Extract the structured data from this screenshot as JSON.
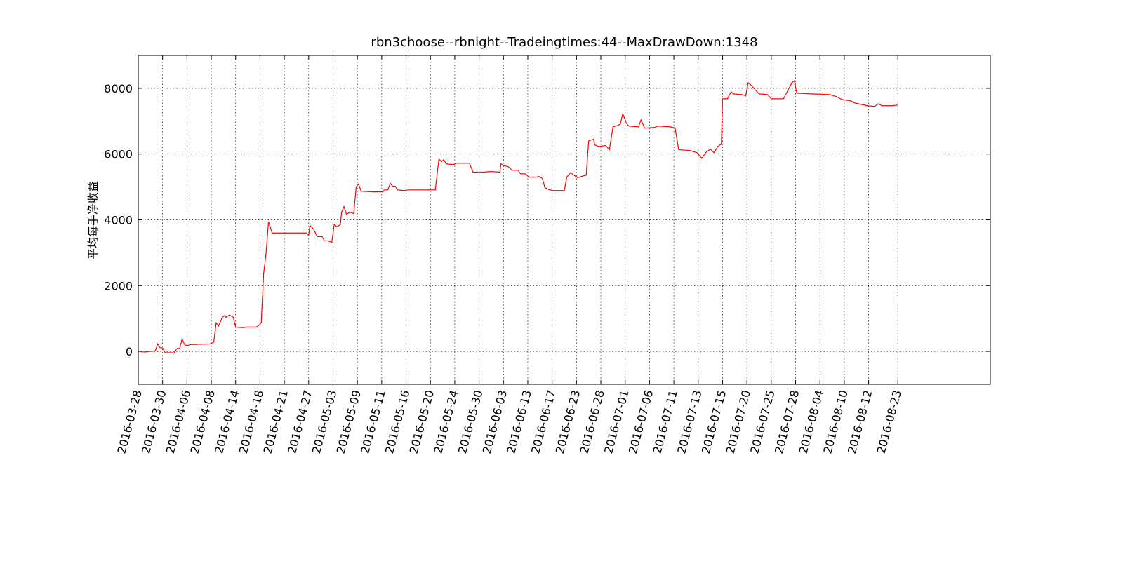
{
  "chart_data": {
    "type": "line",
    "title": "rbn3choose--rbnight--Tradeingtimes:44--MaxDrawDown:1348",
    "ylabel": "平均每手净收益",
    "color": "#ff0000",
    "grid": true,
    "xlim": [
      0,
      700
    ],
    "ylim": [
      -1000,
      9000
    ],
    "yticks": [
      0,
      2000,
      4000,
      6000,
      8000
    ],
    "xticks": [
      {
        "value": 0,
        "label": "2016-03-28"
      },
      {
        "value": 20,
        "label": "2016-03-30"
      },
      {
        "value": 40,
        "label": "2016-04-06"
      },
      {
        "value": 60,
        "label": "2016-04-08"
      },
      {
        "value": 80,
        "label": "2016-04-14"
      },
      {
        "value": 100,
        "label": "2016-04-18"
      },
      {
        "value": 120,
        "label": "2016-04-21"
      },
      {
        "value": 140,
        "label": "2016-04-27"
      },
      {
        "value": 160,
        "label": "2016-05-03"
      },
      {
        "value": 180,
        "label": "2016-05-09"
      },
      {
        "value": 200,
        "label": "2016-05-11"
      },
      {
        "value": 220,
        "label": "2016-05-16"
      },
      {
        "value": 240,
        "label": "2016-05-20"
      },
      {
        "value": 260,
        "label": "2016-05-24"
      },
      {
        "value": 280,
        "label": "2016-05-30"
      },
      {
        "value": 300,
        "label": "2016-06-03"
      },
      {
        "value": 320,
        "label": "2016-06-13"
      },
      {
        "value": 340,
        "label": "2016-06-17"
      },
      {
        "value": 360,
        "label": "2016-06-23"
      },
      {
        "value": 380,
        "label": "2016-06-28"
      },
      {
        "value": 400,
        "label": "2016-07-01"
      },
      {
        "value": 420,
        "label": "2016-07-06"
      },
      {
        "value": 440,
        "label": "2016-07-11"
      },
      {
        "value": 460,
        "label": "2016-07-13"
      },
      {
        "value": 480,
        "label": "2016-07-15"
      },
      {
        "value": 500,
        "label": "2016-07-20"
      },
      {
        "value": 520,
        "label": "2016-07-25"
      },
      {
        "value": 540,
        "label": "2016-07-28"
      },
      {
        "value": 560,
        "label": "2016-08-04"
      },
      {
        "value": 580,
        "label": "2016-08-10"
      },
      {
        "value": 600,
        "label": "2016-08-12"
      },
      {
        "value": 624,
        "label": "2016-08-23"
      }
    ],
    "x": [
      0,
      5,
      10,
      14,
      16,
      18,
      20,
      22,
      28,
      29,
      32,
      34,
      36,
      38,
      40,
      43,
      45,
      59,
      62,
      64,
      66,
      69,
      71,
      72,
      75,
      78,
      80,
      86,
      89,
      97,
      99,
      101,
      103,
      105,
      107,
      110,
      117,
      138,
      140,
      141,
      144,
      147,
      151,
      153,
      156,
      159,
      161,
      163,
      166,
      167,
      169,
      171,
      174,
      177,
      179,
      181,
      183,
      193,
      201,
      202,
      205,
      207,
      209,
      211,
      213,
      218,
      222,
      244,
      245,
      247,
      249,
      251,
      253,
      259,
      261,
      272,
      275,
      284,
      289,
      297,
      298,
      301,
      304,
      307,
      312,
      314,
      318,
      321,
      327,
      329,
      332,
      334,
      338,
      341,
      350,
      352,
      355,
      358,
      361,
      364,
      368,
      370,
      374,
      375,
      378,
      384,
      387,
      390,
      394,
      396,
      398,
      401,
      403,
      411,
      413,
      416,
      424,
      427,
      437,
      441,
      444,
      453,
      459,
      463,
      466,
      470,
      473,
      476,
      479,
      480,
      484,
      487,
      489,
      496,
      499,
      501,
      503,
      510,
      517,
      520,
      528,
      530,
      534,
      537,
      539,
      541,
      553,
      568,
      574,
      578,
      585,
      589,
      599,
      605,
      608,
      611,
      619,
      624
    ],
    "values": [
      0,
      -20,
      0,
      20,
      230,
      110,
      110,
      -40,
      -40,
      -60,
      90,
      90,
      380,
      210,
      170,
      210,
      210,
      230,
      280,
      870,
      770,
      1040,
      1090,
      1040,
      1110,
      1040,
      740,
      720,
      740,
      740,
      790,
      870,
      2360,
      3000,
      3940,
      3600,
      3600,
      3600,
      3530,
      3830,
      3720,
      3490,
      3490,
      3360,
      3360,
      3320,
      3870,
      3790,
      3850,
      4230,
      4400,
      4170,
      4230,
      4190,
      5000,
      5090,
      4870,
      4850,
      4850,
      4910,
      4910,
      5110,
      5020,
      5020,
      4910,
      4890,
      4910,
      4910,
      5230,
      5850,
      5770,
      5830,
      5700,
      5680,
      5720,
      5720,
      5450,
      5450,
      5470,
      5450,
      5700,
      5640,
      5620,
      5510,
      5510,
      5400,
      5400,
      5300,
      5300,
      5320,
      5260,
      4980,
      4910,
      4890,
      4890,
      5300,
      5430,
      5360,
      5280,
      5320,
      5360,
      6400,
      6450,
      6280,
      6230,
      6260,
      6130,
      6830,
      6870,
      6910,
      7230,
      6940,
      6850,
      6830,
      7040,
      6790,
      6810,
      6850,
      6830,
      6790,
      6130,
      6110,
      6040,
      5870,
      6040,
      6150,
      6040,
      6230,
      6300,
      7680,
      7680,
      7890,
      7830,
      7810,
      7770,
      8170,
      8110,
      7830,
      7810,
      7680,
      7680,
      7680,
      7960,
      8170,
      8230,
      7850,
      7830,
      7810,
      7740,
      7660,
      7620,
      7550,
      7470,
      7450,
      7530,
      7470,
      7470,
      7490
    ]
  }
}
